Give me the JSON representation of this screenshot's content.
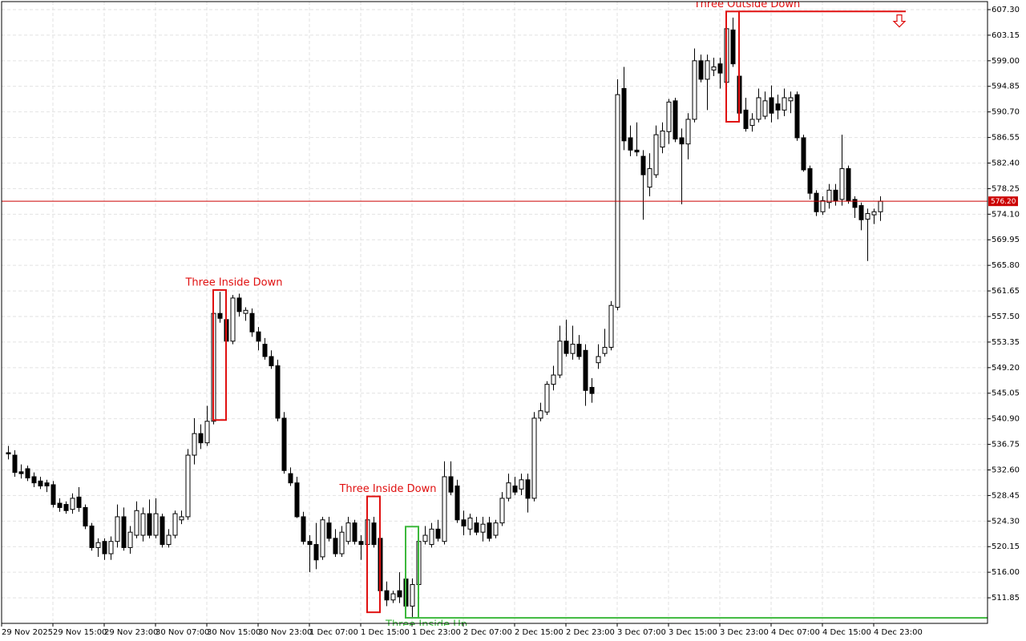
{
  "chart_data": {
    "type": "candlestick",
    "up_color": "#ffffff",
    "down_color": "#000000",
    "grid": true,
    "xlim": [
      -1,
      152.75
    ],
    "ylim": [
      507.7,
      608.6
    ],
    "xticks": [
      {
        "value": -1,
        "label": "29 Nov 2025"
      },
      {
        "value": 7,
        "label": "29 Nov 15:00"
      },
      {
        "value": 15,
        "label": "29 Nov 23:00"
      },
      {
        "value": 23,
        "label": "30 Nov 07:00"
      },
      {
        "value": 31,
        "label": "30 Nov 15:00"
      },
      {
        "value": 39,
        "label": "30 Nov 23:00"
      },
      {
        "value": 47,
        "label": "1 Dec 07:00"
      },
      {
        "value": 55,
        "label": "1 Dec 15:00"
      },
      {
        "value": 63,
        "label": "1 Dec 23:00"
      },
      {
        "value": 71,
        "label": "2 Dec 07:00"
      },
      {
        "value": 79,
        "label": "2 Dec 15:00"
      },
      {
        "value": 87,
        "label": "2 Dec 23:00"
      },
      {
        "value": 95,
        "label": "3 Dec 07:00"
      },
      {
        "value": 103,
        "label": "3 Dec 15:00"
      },
      {
        "value": 111,
        "label": "3 Dec 23:00"
      },
      {
        "value": 119,
        "label": "4 Dec 07:00"
      },
      {
        "value": 127,
        "label": "4 Dec 15:00"
      },
      {
        "value": 135,
        "label": "4 Dec 23:00"
      }
    ],
    "yticks": [
      {
        "value": 607.3,
        "label": "607.30"
      },
      603.15,
      {
        "value": 599,
        "label": "599.00"
      },
      594.85,
      {
        "value": 590.7,
        "label": "590.70"
      },
      586.55,
      {
        "value": 582.4,
        "label": "582.40"
      },
      578.25,
      {
        "value": 574.1,
        "label": "574.10"
      },
      569.95,
      {
        "value": 565.8,
        "label": "565.80"
      },
      561.65,
      {
        "value": 557.5,
        "label": "557.50"
      },
      553.35,
      {
        "value": 549.2,
        "label": "549.20"
      },
      545.05,
      {
        "value": 540.9,
        "label": "540.90"
      },
      536.75,
      {
        "value": 532.6,
        "label": "532.60"
      },
      528.45,
      {
        "value": 524.3,
        "label": "524.30"
      },
      520.15,
      {
        "value": 516,
        "label": "516.00"
      },
      511.85
    ],
    "last_price": {
      "value": 576.2,
      "label": "576.20",
      "color": "#cc0000"
    },
    "annotations": [
      {
        "text": "Three Inside Down",
        "color": "#e01010",
        "x0": 32,
        "x1": 34,
        "top": 561.8,
        "bottom": 540.7
      },
      {
        "text": "Three Inside Down",
        "color": "#e01010",
        "x0": 56,
        "x1": 58,
        "top": 528.3,
        "bottom": 509.5
      },
      {
        "text": "Three Inside Up",
        "color": "#3cb83c",
        "x0": 62,
        "x1": 64,
        "top": 523.4,
        "bottom": 508.6,
        "extend_to": 152.75
      },
      {
        "text": "Three Outside Down",
        "color": "#e01010",
        "x0": 112,
        "x1": 114,
        "top": 607.0,
        "bottom": 589.1,
        "extend_to": 140,
        "arrow_at": [
          139,
          605.4
        ]
      }
    ],
    "candles": [
      [
        535.4,
        536.5,
        534.3,
        535.2
      ],
      [
        535.0,
        535.8,
        531.5,
        532.2
      ],
      [
        532.3,
        533.5,
        531.2,
        532.0
      ],
      [
        532.8,
        533.3,
        530.8,
        531.3
      ],
      [
        531.5,
        532.2,
        529.8,
        530.5
      ],
      [
        530.8,
        531.5,
        529.5,
        530.0
      ],
      [
        530.5,
        531.0,
        529.0,
        530.0
      ],
      [
        530.2,
        530.8,
        526.5,
        527.0
      ],
      [
        527.2,
        528.0,
        525.8,
        526.5
      ],
      [
        527.0,
        527.5,
        525.5,
        526.0
      ],
      [
        526.2,
        528.8,
        525.5,
        528.0
      ],
      [
        528.2,
        529.8,
        525.8,
        526.5
      ],
      [
        526.5,
        527.0,
        523.0,
        523.5
      ],
      [
        523.5,
        524.0,
        519.5,
        520.0
      ],
      [
        520.0,
        521.5,
        518.5,
        520.8
      ],
      [
        521.0,
        521.5,
        518.0,
        519.0
      ],
      [
        519.0,
        521.8,
        518.0,
        521.0
      ],
      [
        521.0,
        527.0,
        520.0,
        525.0
      ],
      [
        525.0,
        526.5,
        519.5,
        520.0
      ],
      [
        520.0,
        523.5,
        519.0,
        522.5
      ],
      [
        522.0,
        527.5,
        521.5,
        526.0
      ],
      [
        522.0,
        526.5,
        521.0,
        525.5
      ],
      [
        525.5,
        527.8,
        521.5,
        522.0
      ],
      [
        522.0,
        528.0,
        521.5,
        525.5
      ],
      [
        525.0,
        525.5,
        520.0,
        520.5
      ],
      [
        520.5,
        523.0,
        520.0,
        522.0
      ],
      [
        522.0,
        526.0,
        521.5,
        525.5
      ],
      [
        524.5,
        526.0,
        523.8,
        525.0
      ],
      [
        525.0,
        536.0,
        524.5,
        535.0
      ],
      [
        535.0,
        541.0,
        533.5,
        538.5
      ],
      [
        538.5,
        540.0,
        536.0,
        537.0
      ],
      [
        537.0,
        543.0,
        536.5,
        540.5
      ],
      [
        540.5,
        561.0,
        540.0,
        558.0
      ],
      [
        558.0,
        561.5,
        556.5,
        557.2
      ],
      [
        557.0,
        561.0,
        553.0,
        553.5
      ],
      [
        553.5,
        561.0,
        553.0,
        560.5
      ],
      [
        560.5,
        561.2,
        557.5,
        558.3
      ],
      [
        558.0,
        559.0,
        556.8,
        558.5
      ],
      [
        558.0,
        558.8,
        554.2,
        555.0
      ],
      [
        555.0,
        555.8,
        552.0,
        553.5
      ],
      [
        553.0,
        554.0,
        550.5,
        551.0
      ],
      [
        551.0,
        552.0,
        549.0,
        549.5
      ],
      [
        549.5,
        550.5,
        540.5,
        541.0
      ],
      [
        541.0,
        542.0,
        532.0,
        532.5
      ],
      [
        532.0,
        533.0,
        530.0,
        530.5
      ],
      [
        530.5,
        531.5,
        524.8,
        525.0
      ],
      [
        525.0,
        525.8,
        520.5,
        521.0
      ],
      [
        521.0,
        522.0,
        516.0,
        520.5
      ],
      [
        520.5,
        524.0,
        516.5,
        518.0
      ],
      [
        518.5,
        525.0,
        518.0,
        524.5
      ],
      [
        524.0,
        525.0,
        521.0,
        521.5
      ],
      [
        521.5,
        523.0,
        518.5,
        519.0
      ],
      [
        519.0,
        523.5,
        518.5,
        522.5
      ],
      [
        521.0,
        525.0,
        520.5,
        524.0
      ],
      [
        524.0,
        524.5,
        520.5,
        521.0
      ],
      [
        521.0,
        522.0,
        518.0,
        520.5
      ],
      [
        520.5,
        528.0,
        520.0,
        524.5
      ],
      [
        524.0,
        525.0,
        520.0,
        520.5
      ],
      [
        521.5,
        522.0,
        512.5,
        513.0
      ],
      [
        513.0,
        514.5,
        510.5,
        511.5
      ],
      [
        511.5,
        513.0,
        511.0,
        512.5
      ],
      [
        513.0,
        516.0,
        511.0,
        512.0
      ],
      [
        514.9,
        515.5,
        510.0,
        510.5
      ],
      [
        510.5,
        515.0,
        508.7,
        514.0
      ],
      [
        514.0,
        521.5,
        513.5,
        521.0
      ],
      [
        521.0,
        523.5,
        520.5,
        522.0
      ],
      [
        520.5,
        524.0,
        520.0,
        523.0
      ],
      [
        523.0,
        524.5,
        521.0,
        521.5
      ],
      [
        521.0,
        534.0,
        520.5,
        531.5
      ],
      [
        531.5,
        534.0,
        528.5,
        529.0
      ],
      [
        530.0,
        531.0,
        524.0,
        524.5
      ],
      [
        524.5,
        526.0,
        522.0,
        523.5
      ],
      [
        523.0,
        525.5,
        522.0,
        524.8
      ],
      [
        524.0,
        525.0,
        522.0,
        522.5
      ],
      [
        522.5,
        525.0,
        521.0,
        523.8
      ],
      [
        524.0,
        525.0,
        521.0,
        521.5
      ],
      [
        522.0,
        524.5,
        521.5,
        524.0
      ],
      [
        524.0,
        529.0,
        523.5,
        528.0
      ],
      [
        528.0,
        532.0,
        527.5,
        530.5
      ],
      [
        530.0,
        531.5,
        528.5,
        529.0
      ],
      [
        529.5,
        532.0,
        528.5,
        531.0
      ],
      [
        531.0,
        532.0,
        525.7,
        528.0
      ],
      [
        528.0,
        542.0,
        527.5,
        541.0
      ],
      [
        541.0,
        543.5,
        540.5,
        542.2
      ],
      [
        542.0,
        547.0,
        541.5,
        546.5
      ],
      [
        546.5,
        549.5,
        545.5,
        548.0
      ],
      [
        548.0,
        556.0,
        547.5,
        553.5
      ],
      [
        553.5,
        557.0,
        551.0,
        551.5
      ],
      [
        551.5,
        556.0,
        550.5,
        553.0
      ],
      [
        553.0,
        554.5,
        550.5,
        551.0
      ],
      [
        552.0,
        553.0,
        543.0,
        545.5
      ],
      [
        546.0,
        547.5,
        543.5,
        545.0
      ],
      [
        550.0,
        553.0,
        549.0,
        551.0
      ],
      [
        551.5,
        555.5,
        551.0,
        552.5
      ],
      [
        552.5,
        560.0,
        552.0,
        559.3
      ],
      [
        559.0,
        596.0,
        558.5,
        593.5
      ],
      [
        594.5,
        598.0,
        584.5,
        586.0
      ],
      [
        586.5,
        588.5,
        583.5,
        584.5
      ],
      [
        584.5,
        589.0,
        583.5,
        584.2
      ],
      [
        583.5,
        584.5,
        573.2,
        580.5
      ],
      [
        578.5,
        584.0,
        577.0,
        581.5
      ],
      [
        580.5,
        588.5,
        580.0,
        587.0
      ],
      [
        585.0,
        589.0,
        584.0,
        587.6
      ],
      [
        587.5,
        592.8,
        585.5,
        592.3
      ],
      [
        592.5,
        593.0,
        585.8,
        586.3
      ],
      [
        586.5,
        588.0,
        575.7,
        585.5
      ],
      [
        585.5,
        590.5,
        583.0,
        589.5
      ],
      [
        589.5,
        601.0,
        589.0,
        599.0
      ],
      [
        599.0,
        600.0,
        595.5,
        596.0
      ],
      [
        596.0,
        600.0,
        591.0,
        599.0
      ],
      [
        597.5,
        599.5,
        596.5,
        598.0
      ],
      [
        598.5,
        599.5,
        594.5,
        597.0
      ],
      [
        595.5,
        606.5,
        594.5,
        604.2
      ],
      [
        604.0,
        606.0,
        598.0,
        598.5
      ],
      [
        596.5,
        597.5,
        590.0,
        590.5
      ],
      [
        591.0,
        593.0,
        587.5,
        588.0
      ],
      [
        588.5,
        590.5,
        587.5,
        589.5
      ],
      [
        589.5,
        594.5,
        589.0,
        593.0
      ],
      [
        590.0,
        594.0,
        589.5,
        592.5
      ],
      [
        593.0,
        595.0,
        589.0,
        590.5
      ],
      [
        592.0,
        593.5,
        589.5,
        591.0
      ],
      [
        591.0,
        594.5,
        590.0,
        593.0
      ],
      [
        592.5,
        594.0,
        590.5,
        593.0
      ],
      [
        593.5,
        594.0,
        586.0,
        586.5
      ],
      [
        586.5,
        587.0,
        581.0,
        581.3
      ],
      [
        581.5,
        582.0,
        576.5,
        577.5
      ],
      [
        577.5,
        578.0,
        573.8,
        574.5
      ],
      [
        574.5,
        577.0,
        574.0,
        576.3
      ],
      [
        576.0,
        579.0,
        575.0,
        578.0
      ],
      [
        578.0,
        579.0,
        575.5,
        576.3
      ],
      [
        576.5,
        587.0,
        575.5,
        581.5
      ],
      [
        581.5,
        582.0,
        575.8,
        576.3
      ],
      [
        576.5,
        577.0,
        573.5,
        575.2
      ],
      [
        575.5,
        576.0,
        571.5,
        573.2
      ],
      [
        573.3,
        575.0,
        566.5,
        574.2
      ],
      [
        574.0,
        575.0,
        572.5,
        574.5
      ],
      [
        574.5,
        577.0,
        573.0,
        576.2
      ]
    ]
  }
}
